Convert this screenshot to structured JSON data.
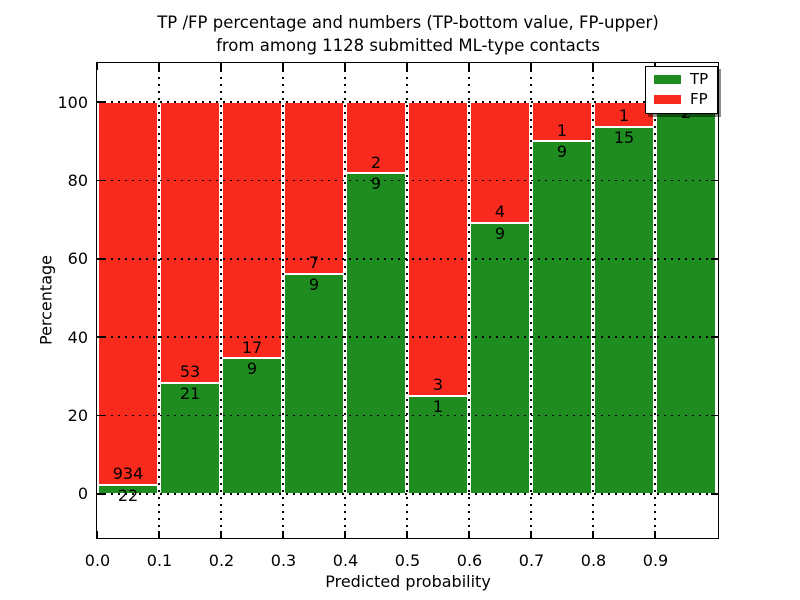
{
  "figure": {
    "title_line1": "TP /FP percentage and numbers (TP-bottom value, FP-upper)",
    "title_line2": "from among 1128 submitted ML-type contacts",
    "xlabel": "Predicted probability",
    "ylabel": "Percentage"
  },
  "legend": {
    "position": "upper-right",
    "items": [
      {
        "label": "TP",
        "color": "#1e8c1e"
      },
      {
        "label": "FP",
        "color": "#f82a1e"
      }
    ]
  },
  "chart_data": {
    "type": "bar",
    "variant": "stacked-percentage-histogram",
    "title": "TP /FP percentage and numbers (TP-bottom value, FP-upper) from among 1128 submitted ML-type contacts",
    "xlabel": "Predicted probability",
    "ylabel": "Percentage",
    "total_submitted_contacts": 1128,
    "xlim": [
      0.0,
      1.0
    ],
    "ylim": [
      -11,
      110
    ],
    "x_ticks": [
      0.0,
      0.1,
      0.2,
      0.3,
      0.4,
      0.5,
      0.6,
      0.7,
      0.8,
      0.9
    ],
    "x_tick_labels": [
      "0.0",
      "0.1",
      "0.2",
      "0.3",
      "0.4",
      "0.5",
      "0.6",
      "0.7",
      "0.8",
      "0.9"
    ],
    "y_ticks": [
      0,
      20,
      40,
      60,
      80,
      100
    ],
    "grid": "dotted-black-both-axes-on-top",
    "legend_position": "upper-right",
    "bin_width": 0.1,
    "bins": [
      {
        "range": "0.0-0.1",
        "tp": 22,
        "fp": 934,
        "tp_percent": 2.3
      },
      {
        "range": "0.1-0.2",
        "tp": 21,
        "fp": 53,
        "tp_percent": 28.4
      },
      {
        "range": "0.2-0.3",
        "tp": 9,
        "fp": 17,
        "tp_percent": 34.6
      },
      {
        "range": "0.3-0.4",
        "tp": 9,
        "fp": 7,
        "tp_percent": 56.3
      },
      {
        "range": "0.4-0.5",
        "tp": 9,
        "fp": 2,
        "tp_percent": 81.8
      },
      {
        "range": "0.5-0.6",
        "tp": 1,
        "fp": 3,
        "tp_percent": 25.0
      },
      {
        "range": "0.6-0.7",
        "tp": 9,
        "fp": 4,
        "tp_percent": 69.2
      },
      {
        "range": "0.7-0.8",
        "tp": 9,
        "fp": 1,
        "tp_percent": 90.0
      },
      {
        "range": "0.8-0.9",
        "tp": 15,
        "fp": 1,
        "tp_percent": 93.8
      },
      {
        "range": "0.9-1.0",
        "tp": 2,
        "fp": 0,
        "tp_percent": 100.0
      }
    ],
    "series": [
      {
        "name": "TP",
        "color": "#1e8c1e",
        "counts": [
          22,
          21,
          9,
          9,
          9,
          1,
          9,
          9,
          15,
          2
        ]
      },
      {
        "name": "FP",
        "color": "#f82a1e",
        "counts": [
          934,
          53,
          17,
          7,
          2,
          3,
          4,
          1,
          1,
          0
        ]
      }
    ]
  }
}
